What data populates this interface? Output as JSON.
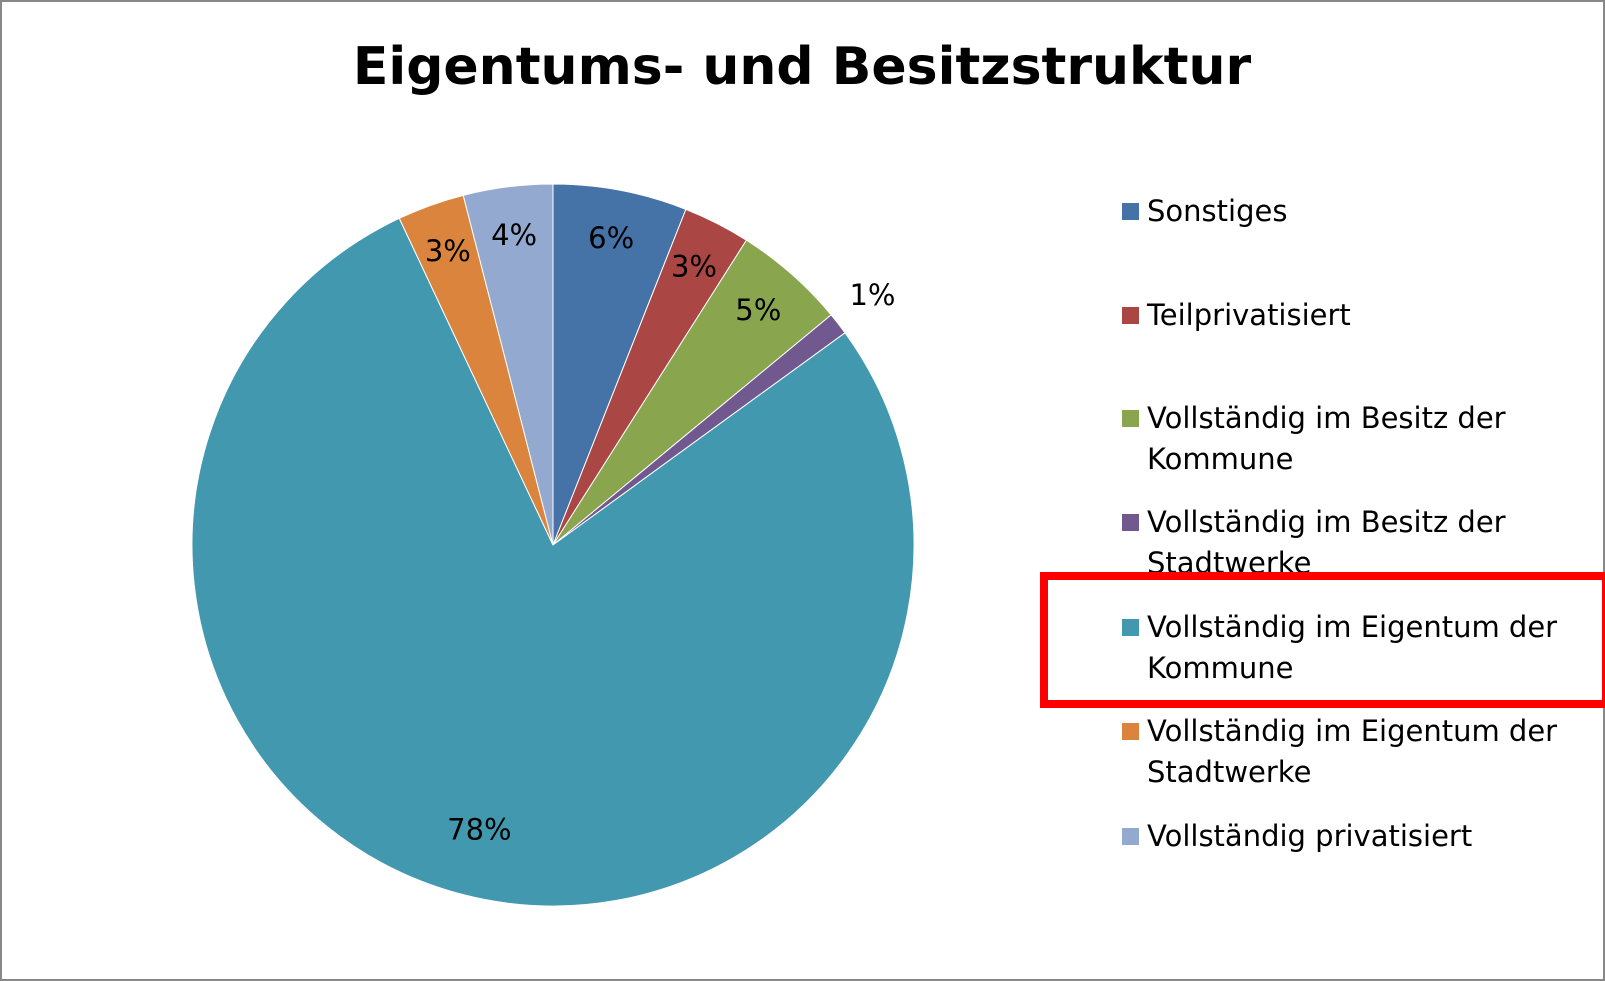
{
  "chart_data": {
    "type": "pie",
    "title": "Eigentums- und Besitzstruktur",
    "categories": [
      "Sonstiges",
      "Teilprivatisiert",
      "Vollständig im Besitz der Kommune",
      "Vollständig im Besitz der Stadtwerke",
      "Vollständig im Eigentum der Kommune",
      "Vollständig im Eigentum der Stadtwerke",
      "Vollständig privatisiert"
    ],
    "values": [
      6,
      3,
      5,
      1,
      78,
      3,
      4
    ],
    "value_labels": [
      "6%",
      "3%",
      "5%",
      "1%",
      "78%",
      "3%",
      "4%"
    ],
    "colors": [
      "#4572a7",
      "#aa4643",
      "#89a54e",
      "#71588f",
      "#4198af",
      "#db843d",
      "#93a9cf"
    ],
    "legend": "right"
  }
}
